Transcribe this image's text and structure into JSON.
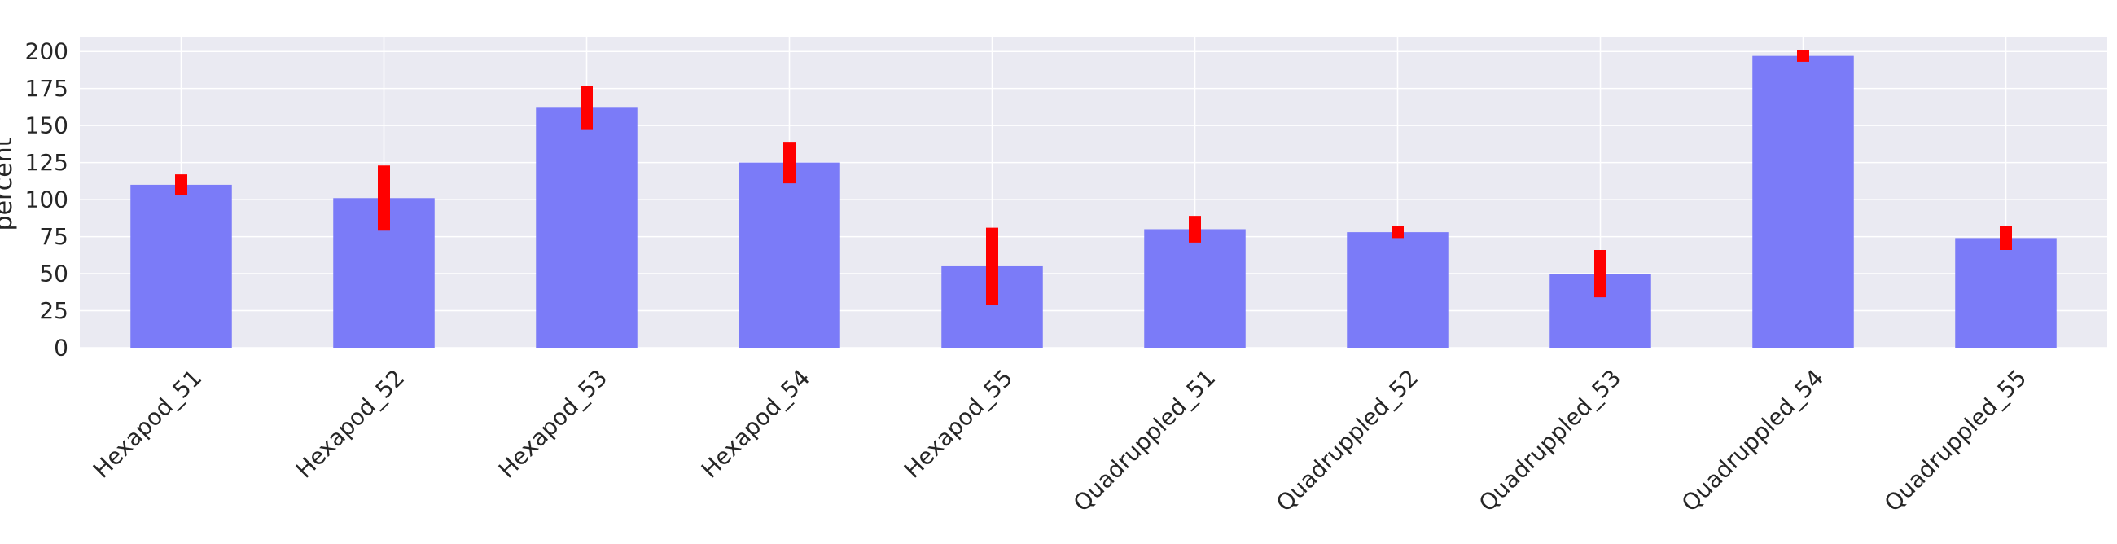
{
  "chart_data": {
    "type": "bar",
    "title": "",
    "xlabel": "",
    "ylabel": "percent",
    "ylim": [
      0,
      210
    ],
    "yticks": [
      0,
      25,
      50,
      75,
      100,
      125,
      150,
      175,
      200
    ],
    "grid": true,
    "legend": "none",
    "categories": [
      "Hexapod_51",
      "Hexapod_52",
      "Hexapod_53",
      "Hexapod_54",
      "Hexapod_55",
      "Quadruppled_51",
      "Quadruppled_52",
      "Quadruppled_53",
      "Quadruppled_54",
      "Quadruppled_55"
    ],
    "series": [
      {
        "values": [
          110,
          101,
          162,
          125,
          55,
          80,
          78,
          50,
          197,
          74
        ],
        "error": [
          7,
          22,
          15,
          14,
          26,
          9,
          4,
          16,
          4,
          8
        ]
      }
    ],
    "colors": {
      "bar": "#7b7bf8",
      "error_bar": "#ff0000",
      "plot_background": "#eaeaf2",
      "grid": "#ffffff"
    }
  }
}
